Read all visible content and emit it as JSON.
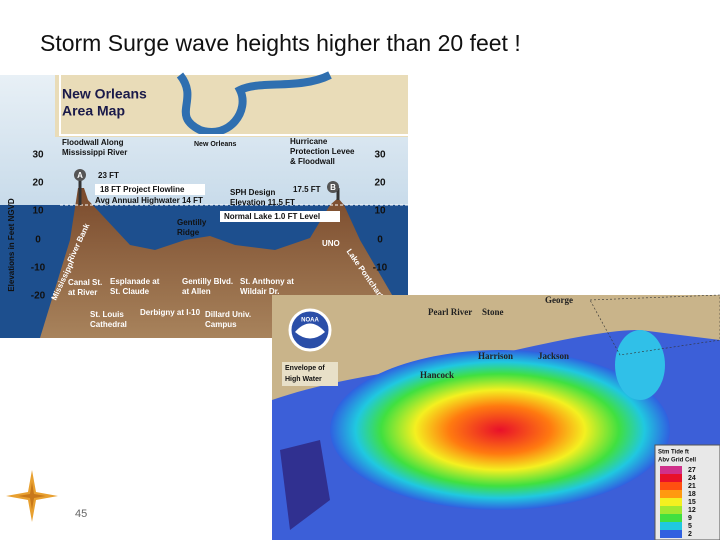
{
  "title": "Storm Surge wave heights higher than 20 feet !",
  "page_number": "45",
  "cross_section": {
    "map_title": [
      "New Orleans",
      "Area Map"
    ],
    "map_city": "New Orleans",
    "axis_label": "Elevations in Feet NGVD",
    "left_ticks": [
      "30",
      "20",
      "10",
      "0",
      "-10",
      "-20"
    ],
    "right_ticks": [
      "30",
      "20",
      "10",
      "0",
      "-10"
    ],
    "markers": [
      "A",
      "B"
    ],
    "floodwall": [
      "Floodwall Along",
      "Mississippi River"
    ],
    "levee": [
      "Hurricane",
      "Protection Levee",
      "& Floodwall"
    ],
    "levels": {
      "wall_top": "23 FT",
      "flowline": "18 FT Project Flowline",
      "highwater": "Avg Annual Highwater 14 FT",
      "levee_top": "17.5 FT",
      "sph": [
        "SPH Design",
        "Elevation 11.5 FT"
      ],
      "lake": "Normal Lake 1.0 FT Level"
    },
    "ridge": [
      "Gentilly",
      "Ridge"
    ],
    "uno": "UNO",
    "river_bank": "River Bank",
    "mississippi": "Mississippi",
    "shoreline": "Lake Pontchartrain Shoreline",
    "locations": [
      [
        "Canal St.",
        "at River"
      ],
      [
        "Esplanade at",
        "St. Claude"
      ],
      [
        "Gentilly Blvd.",
        "at Allen"
      ],
      [
        "St. Anthony at",
        "Wildair Dr."
      ],
      [
        "St. Louis",
        "Cathedral"
      ],
      [
        "Derbigny at I-10"
      ],
      [
        "Dillard Univ.",
        "Campus"
      ]
    ]
  },
  "surge_map": {
    "logo": "NOAA",
    "caption": [
      "Envelope of",
      "High Water"
    ],
    "places": [
      "Pearl River",
      "Stone",
      "George",
      "Harrison",
      "Jackson",
      "Hancock"
    ],
    "legend_title": [
      "Stm Tide ft",
      "Abv Grid Cell"
    ],
    "legend_labels": [
      "27",
      "24",
      "21",
      "18",
      "15",
      "12",
      "9",
      "5",
      "2"
    ]
  }
}
